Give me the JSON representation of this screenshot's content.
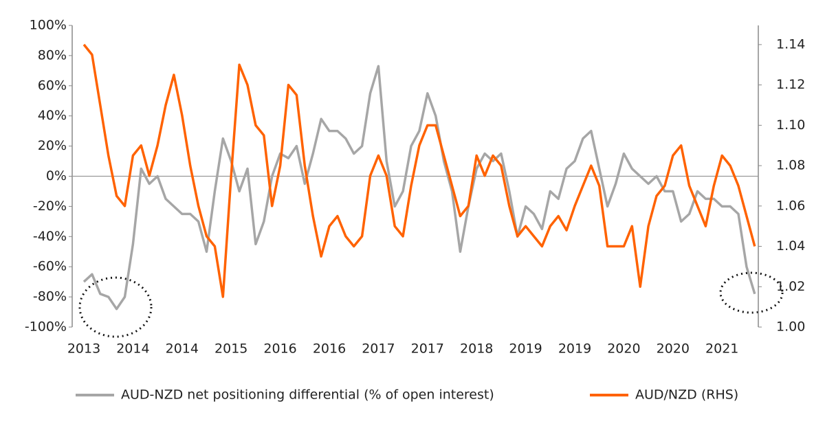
{
  "chart_data": {
    "type": "line",
    "categories": [
      "2013",
      null,
      null,
      null,
      null,
      null,
      "2014",
      null,
      null,
      null,
      null,
      null,
      "2014",
      null,
      null,
      null,
      null,
      null,
      "2015",
      null,
      null,
      null,
      null,
      null,
      "2016",
      null,
      null,
      null,
      null,
      null,
      "2016",
      null,
      null,
      null,
      null,
      null,
      "2017",
      null,
      null,
      null,
      null,
      null,
      "2017",
      null,
      null,
      null,
      null,
      null,
      "2018",
      null,
      null,
      null,
      null,
      null,
      "2019",
      null,
      null,
      null,
      null,
      null,
      "2019",
      null,
      null,
      null,
      null,
      null,
      "2020",
      null,
      null,
      null,
      null,
      null,
      "2020",
      null,
      null,
      null,
      null,
      null,
      "2021",
      null,
      null,
      null,
      null
    ],
    "series": [
      {
        "name": "AUD-NZD net positioning differential (% of open interest)",
        "color": "#a6a6a6",
        "axis": "y",
        "values": [
          -70,
          -65,
          -78,
          -80,
          -88,
          -80,
          -45,
          5,
          -5,
          0,
          -15,
          -20,
          -25,
          -25,
          -30,
          -50,
          -10,
          25,
          10,
          -10,
          5,
          -45,
          -30,
          0,
          15,
          12,
          20,
          -5,
          15,
          38,
          30,
          30,
          25,
          15,
          20,
          55,
          73,
          10,
          -20,
          -10,
          20,
          30,
          55,
          40,
          10,
          -10,
          -50,
          -20,
          5,
          15,
          10,
          15,
          -10,
          -40,
          -20,
          -25,
          -35,
          -10,
          -15,
          5,
          10,
          25,
          30,
          5,
          -20,
          -5,
          15,
          5,
          0,
          -5,
          0,
          -10,
          -10,
          -30,
          -25,
          -10,
          -15,
          -15,
          -20,
          -20,
          -25,
          -60,
          -78
        ]
      },
      {
        "name": "AUD/NZD (RHS)",
        "color": "#ff6200",
        "axis": "y2",
        "values": [
          1.14,
          1.135,
          1.11,
          1.085,
          1.065,
          1.06,
          1.085,
          1.09,
          1.075,
          1.09,
          1.11,
          1.125,
          1.105,
          1.08,
          1.06,
          1.045,
          1.04,
          1.015,
          1.075,
          1.13,
          1.12,
          1.1,
          1.095,
          1.06,
          1.08,
          1.12,
          1.115,
          1.08,
          1.055,
          1.035,
          1.05,
          1.055,
          1.045,
          1.04,
          1.045,
          1.075,
          1.085,
          1.075,
          1.05,
          1.045,
          1.07,
          1.09,
          1.1,
          1.1,
          1.085,
          1.07,
          1.055,
          1.06,
          1.085,
          1.075,
          1.085,
          1.08,
          1.06,
          1.045,
          1.05,
          1.045,
          1.04,
          1.05,
          1.055,
          1.048,
          1.06,
          1.07,
          1.08,
          1.07,
          1.04,
          1.04,
          1.04,
          1.05,
          1.02,
          1.05,
          1.065,
          1.07,
          1.085,
          1.09,
          1.07,
          1.06,
          1.05,
          1.07,
          1.085,
          1.08,
          1.07,
          1.055,
          1.04
        ]
      }
    ],
    "ylim": [
      -100,
      100
    ],
    "yticks": [
      {
        "value": -100,
        "label": "-100%"
      },
      {
        "value": -80,
        "label": "-80%"
      },
      {
        "value": -60,
        "label": "-60%"
      },
      {
        "value": -40,
        "label": "-40%"
      },
      {
        "value": -20,
        "label": "-20%"
      },
      {
        "value": 0,
        "label": "0%"
      },
      {
        "value": 20,
        "label": "20%"
      },
      {
        "value": 40,
        "label": "40%"
      },
      {
        "value": 60,
        "label": "60%"
      },
      {
        "value": 80,
        "label": "80%"
      },
      {
        "value": 100,
        "label": "100%"
      }
    ],
    "y2lim": [
      1,
      1.1495
    ],
    "y2ticks": [
      {
        "value": 1,
        "label": "1.00"
      },
      1.02,
      1.04,
      1.06,
      1.08,
      {
        "value": 1.1,
        "label": "1.10"
      },
      1.12,
      1.14
    ],
    "legend": "bottom"
  }
}
